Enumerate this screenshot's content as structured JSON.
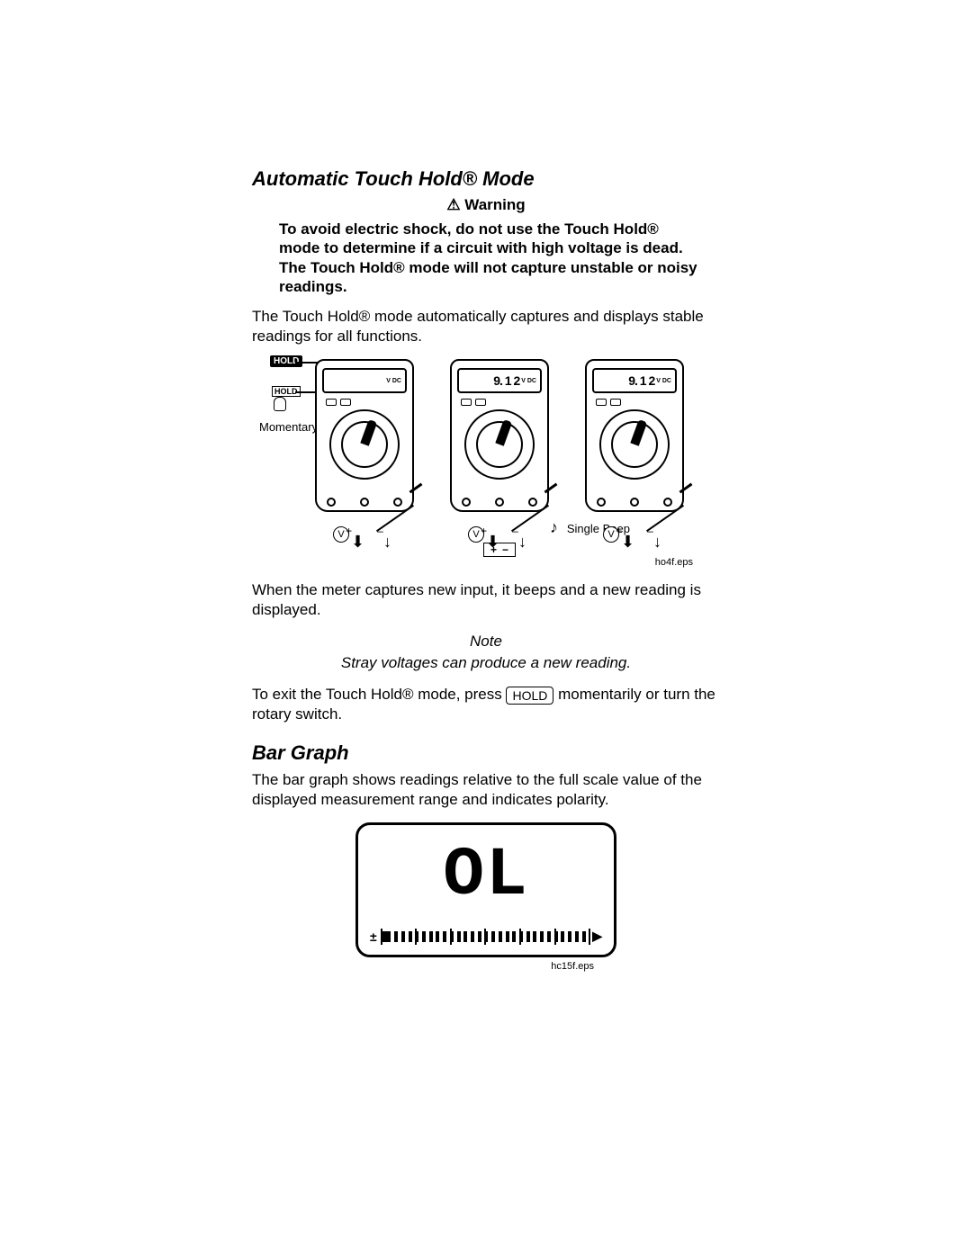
{
  "section1": {
    "title": "Automatic Touch Hold® Mode",
    "warning_label": "⚠ Warning",
    "warning_body": "To avoid electric shock, do not use the Touch Hold® mode  to determine if a circuit with high voltage is dead. The Touch Hold® mode will not capture unstable or noisy readings.",
    "intro": "The Touch Hold® mode automatically captures and displays stable readings for all functions.",
    "after_fig": "When the meter captures new input, it beeps and a new reading is displayed.",
    "note_label": "Note",
    "note_body": "Stray voltages can produce a new reading.",
    "exit_pre": "To exit the Touch Hold® mode, press ",
    "exit_key": "HOLD",
    "exit_post": " momentarily or turn the rotary switch."
  },
  "figure1": {
    "hold_badge": "HOLD",
    "hold_btn": "HOLD",
    "momentary": "Momentary",
    "v_label": "V",
    "screen1_unit": "V DC",
    "reading": "9. 1 2",
    "reading_unit": "V DC",
    "beep_label": "Single Beep",
    "plus": "+",
    "minus": "–",
    "caption": "ho4f.eps"
  },
  "section2": {
    "title": "Bar Graph",
    "body": "The bar graph shows readings relative to the full scale value of the displayed measurement range and indicates polarity."
  },
  "figure2": {
    "ol": "OL",
    "pm": "±",
    "tri": "▶",
    "segments": 30,
    "majors": 6,
    "caption": "hc15f.eps"
  },
  "colors": {
    "text": "#000000",
    "background": "#ffffff"
  }
}
